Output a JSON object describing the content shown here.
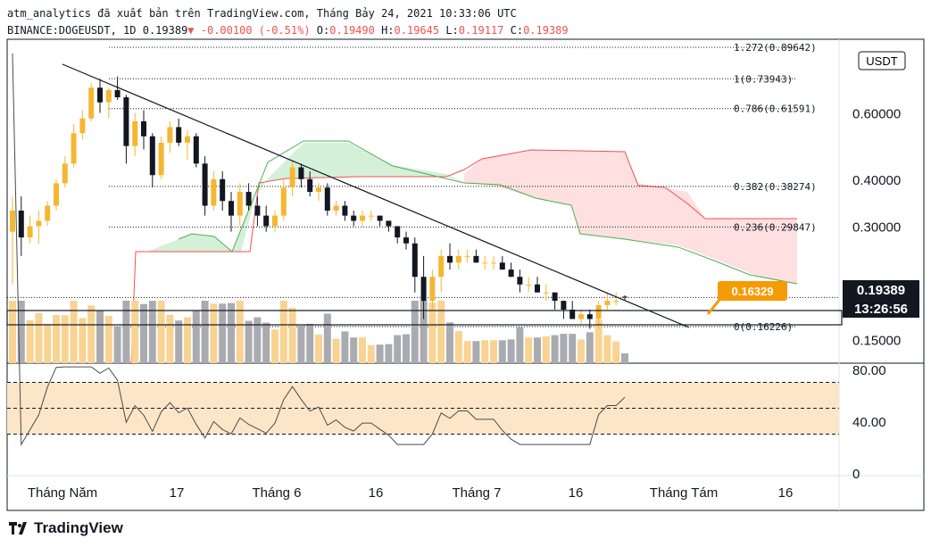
{
  "header": {
    "line1": "atm_analytics đã xuất bản trên TradingView.com, Tháng Bảy 24, 2021 10:33:06 UTC",
    "symbol": "BINANCE:DOGEUSDT, 1D 0.19389",
    "change": "▼ -0.00100 (-0.51%)",
    "o_label": " O:",
    "o_val": "0.19490",
    "h_label": " H:",
    "h_val": "0.19645",
    "l_label": " L:",
    "l_val": "0.19117",
    "c_label": " C:",
    "c_val": "0.19389"
  },
  "currency_badge": "USDT",
  "price_tag": {
    "value": "0.19389",
    "countdown": "13:26:56"
  },
  "alert_label": "0.16329",
  "footer": {
    "brand": "TradingView"
  },
  "colors": {
    "up": "#f5b731",
    "down": "#131722",
    "kumo_bear": "#fde0df",
    "kumo_bull": "#d5f0d8",
    "rsi_band": "#fde6c8"
  },
  "chart_data": [
    {
      "type": "candlestick",
      "title": "DOGEUSDT 1D",
      "yscale": "log",
      "yaxis_ticks": [
        "0.60000",
        "0.40000",
        "0.30000",
        "0.15000"
      ],
      "xaxis_ticks": [
        "Tháng Năm",
        "17",
        "Tháng 6",
        "16",
        "Tháng 7",
        "16",
        "Tháng Tám",
        "16"
      ],
      "fib_levels": [
        {
          "label": "1.272(0.89642)",
          "value": 0.89642
        },
        {
          "label": "1(0.73943)",
          "value": 0.73943
        },
        {
          "label": "0.786(0.61591)",
          "value": 0.61591
        },
        {
          "label": "0.382(0.38274)",
          "value": 0.38274
        },
        {
          "label": "0.236(0.29847)",
          "value": 0.29847
        },
        {
          "label": "0(0.16226)",
          "value": 0.16226
        }
      ],
      "last_price": 0.19389,
      "ohlc": [
        [
          0.29,
          0.36,
          0.21,
          0.33
        ],
        [
          0.33,
          0.36,
          0.25,
          0.28
        ],
        [
          0.28,
          0.32,
          0.27,
          0.3
        ],
        [
          0.3,
          0.33,
          0.27,
          0.31
        ],
        [
          0.31,
          0.35,
          0.3,
          0.34
        ],
        [
          0.34,
          0.4,
          0.33,
          0.39
        ],
        [
          0.39,
          0.46,
          0.38,
          0.44
        ],
        [
          0.44,
          0.56,
          0.43,
          0.53
        ],
        [
          0.53,
          0.61,
          0.51,
          0.58
        ],
        [
          0.58,
          0.72,
          0.57,
          0.7
        ],
        [
          0.7,
          0.74,
          0.6,
          0.64
        ],
        [
          0.64,
          0.7,
          0.58,
          0.69
        ],
        [
          0.69,
          0.75,
          0.65,
          0.66
        ],
        [
          0.66,
          0.67,
          0.44,
          0.49
        ],
        [
          0.49,
          0.6,
          0.46,
          0.57
        ],
        [
          0.57,
          0.61,
          0.48,
          0.52
        ],
        [
          0.52,
          0.53,
          0.38,
          0.41
        ],
        [
          0.41,
          0.52,
          0.4,
          0.5
        ],
        [
          0.5,
          0.57,
          0.47,
          0.55
        ],
        [
          0.55,
          0.58,
          0.49,
          0.5
        ],
        [
          0.5,
          0.54,
          0.45,
          0.52
        ],
        [
          0.52,
          0.53,
          0.43,
          0.44
        ],
        [
          0.44,
          0.46,
          0.32,
          0.34
        ],
        [
          0.34,
          0.42,
          0.33,
          0.4
        ],
        [
          0.4,
          0.42,
          0.33,
          0.35
        ],
        [
          0.35,
          0.37,
          0.29,
          0.32
        ],
        [
          0.32,
          0.39,
          0.3,
          0.37
        ],
        [
          0.37,
          0.39,
          0.33,
          0.34
        ],
        [
          0.34,
          0.36,
          0.3,
          0.32
        ],
        [
          0.32,
          0.34,
          0.29,
          0.3
        ],
        [
          0.3,
          0.33,
          0.29,
          0.32
        ],
        [
          0.32,
          0.4,
          0.31,
          0.38
        ],
        [
          0.38,
          0.45,
          0.36,
          0.43
        ],
        [
          0.43,
          0.44,
          0.38,
          0.4
        ],
        [
          0.4,
          0.42,
          0.36,
          0.37
        ],
        [
          0.37,
          0.39,
          0.35,
          0.38
        ],
        [
          0.38,
          0.39,
          0.32,
          0.33
        ],
        [
          0.33,
          0.35,
          0.32,
          0.34
        ],
        [
          0.34,
          0.35,
          0.31,
          0.32
        ],
        [
          0.32,
          0.33,
          0.3,
          0.31
        ],
        [
          0.31,
          0.33,
          0.3,
          0.32
        ],
        [
          0.32,
          0.33,
          0.31,
          0.32
        ],
        [
          0.32,
          0.32,
          0.3,
          0.31
        ],
        [
          0.31,
          0.31,
          0.29,
          0.3
        ],
        [
          0.3,
          0.3,
          0.27,
          0.28
        ],
        [
          0.28,
          0.29,
          0.26,
          0.27
        ],
        [
          0.27,
          0.28,
          0.2,
          0.22
        ],
        [
          0.22,
          0.25,
          0.17,
          0.19
        ],
        [
          0.19,
          0.23,
          0.18,
          0.22
        ],
        [
          0.22,
          0.26,
          0.2,
          0.25
        ],
        [
          0.25,
          0.27,
          0.23,
          0.24
        ],
        [
          0.24,
          0.26,
          0.23,
          0.25
        ],
        [
          0.25,
          0.26,
          0.24,
          0.25
        ],
        [
          0.25,
          0.26,
          0.24,
          0.24
        ],
        [
          0.24,
          0.25,
          0.23,
          0.24
        ],
        [
          0.24,
          0.25,
          0.23,
          0.24
        ],
        [
          0.24,
          0.25,
          0.23,
          0.23
        ],
        [
          0.23,
          0.24,
          0.22,
          0.22
        ],
        [
          0.22,
          0.23,
          0.2,
          0.21
        ],
        [
          0.21,
          0.22,
          0.2,
          0.21
        ],
        [
          0.21,
          0.22,
          0.2,
          0.2
        ],
        [
          0.2,
          0.21,
          0.19,
          0.2
        ],
        [
          0.2,
          0.2,
          0.18,
          0.19
        ],
        [
          0.19,
          0.19,
          0.17,
          0.18
        ],
        [
          0.18,
          0.19,
          0.17,
          0.17
        ],
        [
          0.17,
          0.18,
          0.165,
          0.175
        ],
        [
          0.175,
          0.18,
          0.16,
          0.17
        ],
        [
          0.17,
          0.19,
          0.16,
          0.185
        ],
        [
          0.185,
          0.2,
          0.18,
          0.19
        ],
        [
          0.19,
          0.2,
          0.185,
          0.19
        ],
        [
          0.1949,
          0.19645,
          0.19117,
          0.19389
        ]
      ],
      "rsi_ticks": [
        "80.00",
        "40.00",
        "0"
      ],
      "rsi_band": [
        30,
        70
      ]
    }
  ]
}
